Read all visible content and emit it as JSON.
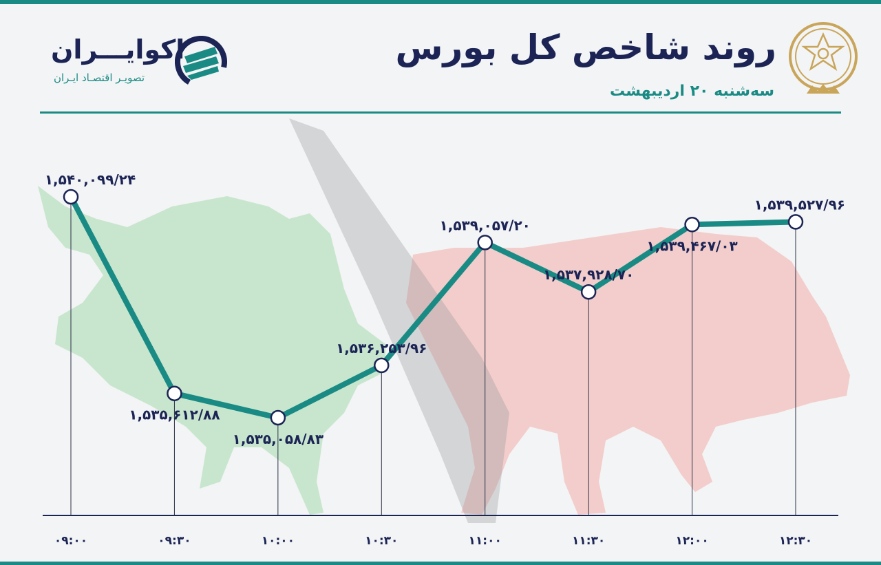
{
  "header": {
    "title": "روند شاخص کل بورس",
    "subtitle": "سه‌شنبه ۲۰ اردیبهشت"
  },
  "brand": {
    "name": "اکوایـــران",
    "tagline": "تصویـر اقتصـاد ایـران"
  },
  "icons": {
    "seal": "tehran-stock-exchange-seal-icon",
    "brand_logo": "ecoiran-logo-icon",
    "background_left": "bull-icon",
    "background_right": "bear-icon"
  },
  "colors": {
    "line": "#1a8a84",
    "accent": "#1a8a84",
    "text": "#1b2455",
    "bull": "#bfe3c6",
    "bear": "#f1c5c3"
  },
  "chart_data": {
    "type": "line",
    "x": [
      "۰۹:۰۰",
      "۰۹:۳۰",
      "۱۰:۰۰",
      "۱۰:۳۰",
      "۱۱:۰۰",
      "۱۱:۳۰",
      "۱۲:۰۰",
      "۱۲:۳۰"
    ],
    "values": [
      1540099.24,
      1535612.88,
      1535058.83,
      1536253.96,
      1539057.2,
      1537928.7,
      1539467.03,
      1539527.96
    ],
    "labels": [
      "۱,۵۴۰,۰۹۹/۲۴",
      "۱,۵۳۵,۶۱۲/۸۸",
      "۱,۵۳۵,۰۵۸/۸۳",
      "۱,۵۳۶,۲۵۳/۹۶",
      "۱,۵۳۹,۰۵۷/۲۰",
      "۱,۵۳۷,۹۲۸/۷۰",
      "۱,۵۳۹,۴۶۷/۰۳",
      "۱,۵۳۹,۵۲۷/۹۶"
    ],
    "label_positions": [
      "above",
      "below",
      "below",
      "above",
      "above",
      "above",
      "below",
      "above"
    ],
    "grid": false,
    "legend": "none"
  }
}
